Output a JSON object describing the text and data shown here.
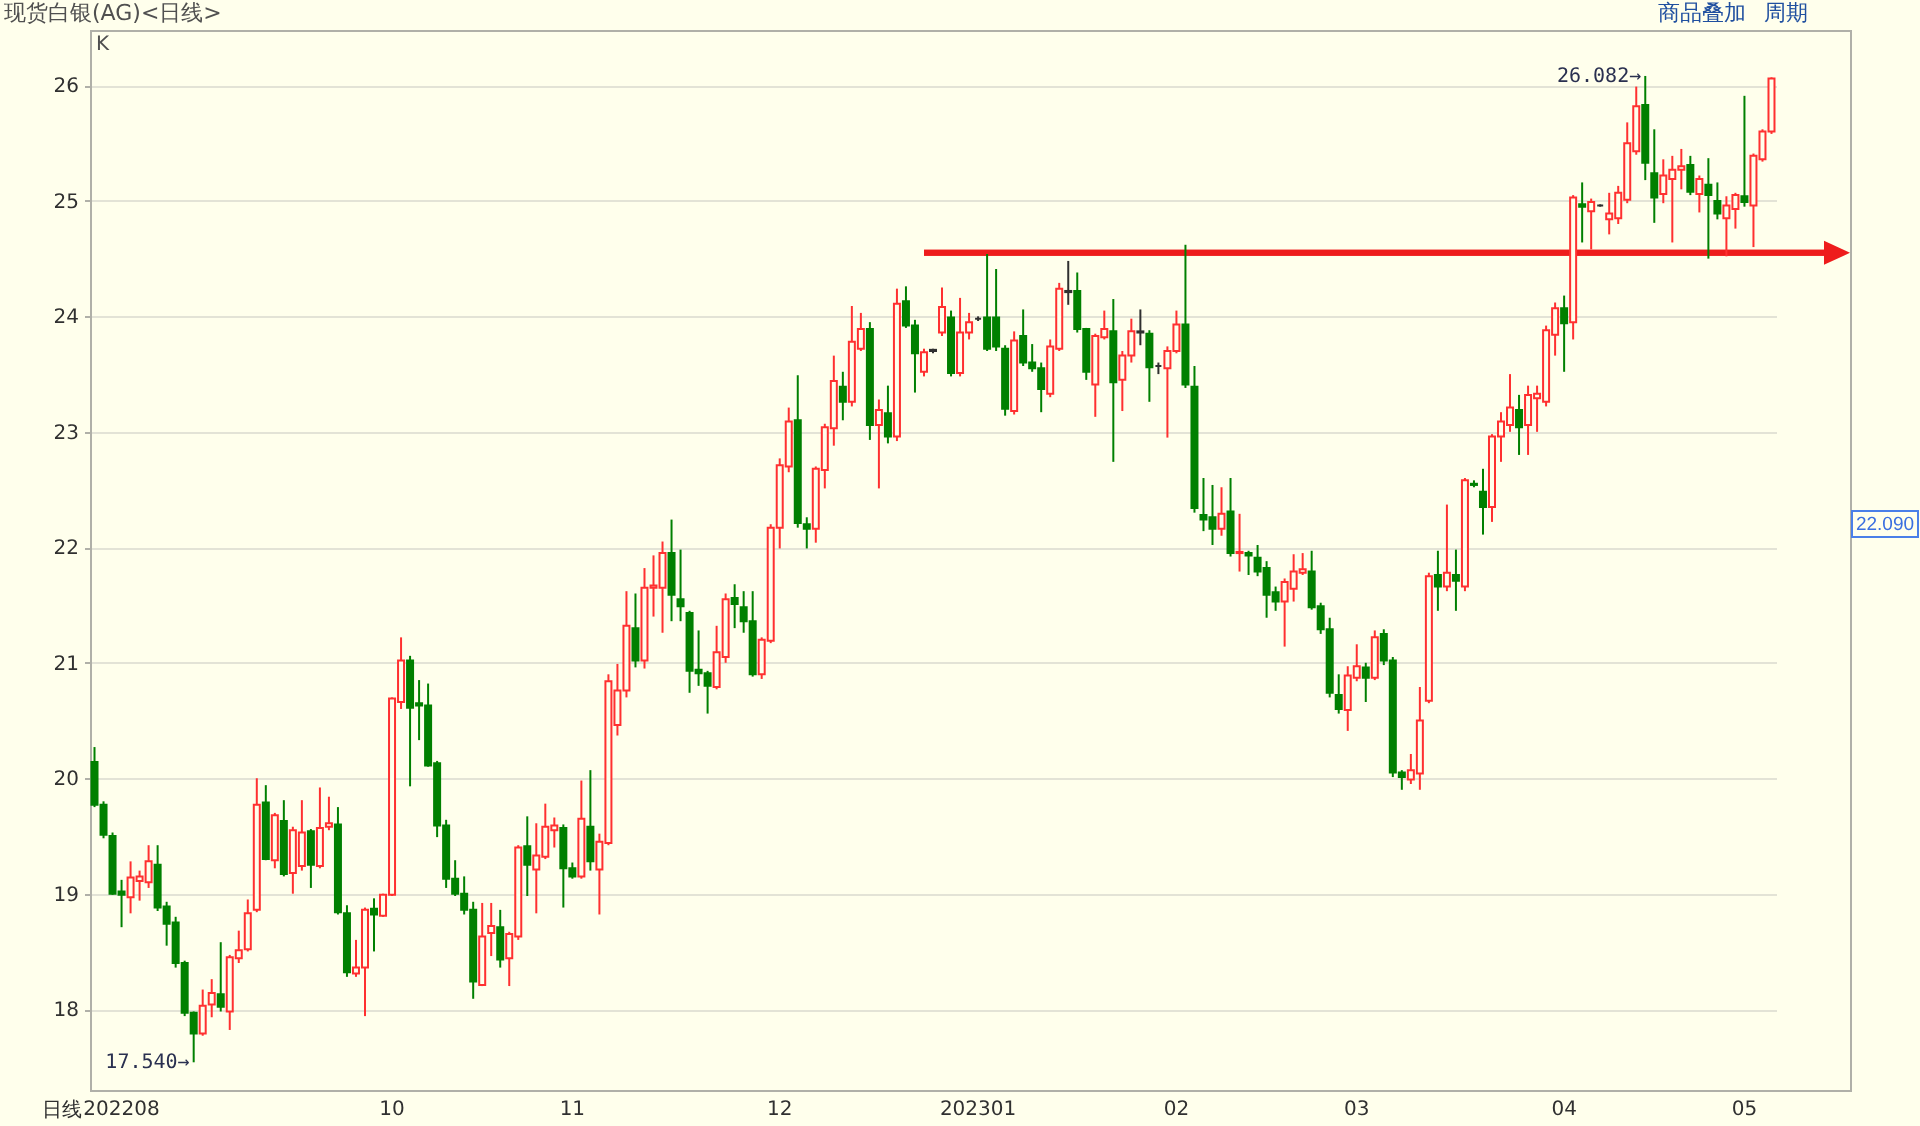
{
  "chart_data": {
    "type": "candlestick",
    "title": "现货白银(AG)<日线>",
    "categories": [
      null,
      null,
      null,
      "202208",
      null,
      null,
      null,
      null,
      null,
      null,
      null,
      null,
      null,
      null,
      null,
      null,
      null,
      null,
      null,
      null,
      null,
      null,
      null,
      null,
      null,
      null,
      null,
      null,
      null,
      null,
      null,
      null,
      null,
      "10",
      null,
      null,
      null,
      null,
      null,
      null,
      null,
      null,
      null,
      null,
      null,
      null,
      null,
      null,
      null,
      null,
      null,
      null,
      null,
      "11",
      null,
      null,
      null,
      null,
      null,
      null,
      null,
      null,
      null,
      null,
      null,
      null,
      null,
      null,
      null,
      null,
      null,
      null,
      null,
      null,
      null,
      null,
      "12",
      null,
      null,
      null,
      null,
      null,
      null,
      null,
      null,
      null,
      null,
      null,
      null,
      null,
      null,
      null,
      null,
      null,
      null,
      null,
      null,
      null,
      "202301",
      null,
      null,
      null,
      null,
      null,
      null,
      null,
      null,
      null,
      null,
      null,
      null,
      null,
      null,
      null,
      null,
      null,
      null,
      null,
      null,
      null,
      "02",
      null,
      null,
      null,
      null,
      null,
      null,
      null,
      null,
      null,
      null,
      null,
      null,
      null,
      null,
      null,
      null,
      null,
      null,
      null,
      "03",
      null,
      null,
      null,
      null,
      null,
      null,
      null,
      null,
      null,
      null,
      null,
      null,
      null,
      null,
      null,
      null,
      null,
      null,
      null,
      null,
      null,
      null,
      "04",
      null,
      null,
      null,
      null,
      null,
      null,
      null,
      null,
      null,
      null,
      null,
      null,
      null,
      null,
      null,
      null,
      null,
      null,
      null,
      "05",
      null,
      null,
      null
    ],
    "ohlc": [
      [
        20.14,
        20.27,
        19.75,
        19.77
      ],
      [
        19.77,
        19.8,
        19.48,
        19.51
      ],
      [
        19.5,
        19.53,
        18.99,
        19.0
      ],
      [
        19.02,
        19.12,
        18.71,
        18.99
      ],
      [
        18.97,
        19.28,
        18.83,
        19.14
      ],
      [
        19.11,
        19.2,
        18.94,
        19.15
      ],
      [
        19.1,
        19.42,
        19.05,
        19.28
      ],
      [
        19.25,
        19.42,
        18.85,
        18.88
      ],
      [
        18.89,
        18.93,
        18.55,
        18.74
      ],
      [
        18.75,
        18.8,
        18.36,
        18.4
      ],
      [
        18.4,
        18.42,
        17.94,
        17.97
      ],
      [
        17.97,
        17.98,
        17.54,
        17.79
      ],
      [
        17.79,
        18.17,
        17.77,
        18.03
      ],
      [
        18.04,
        18.26,
        17.93,
        18.14
      ],
      [
        18.13,
        18.58,
        17.98,
        18.02
      ],
      [
        17.98,
        18.47,
        17.82,
        18.45
      ],
      [
        18.44,
        18.68,
        18.4,
        18.51
      ],
      [
        18.52,
        18.95,
        18.5,
        18.83
      ],
      [
        18.86,
        20.0,
        18.84,
        19.77
      ],
      [
        19.79,
        19.94,
        19.29,
        19.3
      ],
      [
        19.29,
        19.7,
        19.22,
        19.68
      ],
      [
        19.63,
        19.81,
        19.15,
        19.17
      ],
      [
        19.18,
        19.58,
        19.0,
        19.55
      ],
      [
        19.24,
        19.81,
        19.2,
        19.53
      ],
      [
        19.54,
        19.56,
        19.05,
        19.25
      ],
      [
        19.24,
        19.92,
        19.22,
        19.57
      ],
      [
        19.58,
        19.84,
        19.55,
        19.61
      ],
      [
        19.6,
        19.75,
        18.82,
        18.84
      ],
      [
        18.83,
        18.9,
        18.28,
        18.32
      ],
      [
        18.31,
        18.6,
        18.28,
        18.36
      ],
      [
        18.36,
        18.88,
        17.94,
        18.86
      ],
      [
        18.87,
        18.96,
        18.5,
        18.82
      ],
      [
        18.81,
        19.0,
        18.8,
        18.99
      ],
      [
        18.99,
        20.7,
        18.98,
        20.69
      ],
      [
        20.66,
        21.22,
        20.6,
        21.02
      ],
      [
        21.02,
        21.06,
        19.93,
        20.61
      ],
      [
        20.65,
        20.85,
        20.33,
        20.63
      ],
      [
        20.63,
        20.82,
        20.1,
        20.11
      ],
      [
        20.13,
        20.15,
        19.49,
        19.59
      ],
      [
        19.59,
        19.64,
        19.05,
        19.13
      ],
      [
        19.13,
        19.29,
        18.98,
        19.0
      ],
      [
        19.0,
        19.15,
        18.82,
        18.86
      ],
      [
        18.86,
        18.93,
        18.09,
        18.24
      ],
      [
        18.21,
        18.92,
        18.2,
        18.63
      ],
      [
        18.66,
        18.92,
        18.46,
        18.72
      ],
      [
        18.71,
        18.86,
        18.36,
        18.43
      ],
      [
        18.44,
        18.67,
        18.2,
        18.65
      ],
      [
        18.63,
        19.42,
        18.6,
        19.4
      ],
      [
        19.41,
        19.67,
        18.98,
        19.25
      ],
      [
        19.21,
        19.61,
        18.83,
        19.33
      ],
      [
        19.32,
        19.78,
        19.3,
        19.58
      ],
      [
        19.55,
        19.66,
        19.4,
        19.59
      ],
      [
        19.57,
        19.6,
        18.88,
        19.22
      ],
      [
        19.22,
        19.27,
        19.13,
        19.15
      ],
      [
        19.15,
        19.98,
        19.13,
        19.65
      ],
      [
        19.58,
        20.07,
        19.2,
        19.28
      ],
      [
        19.21,
        19.52,
        18.82,
        19.45
      ],
      [
        19.44,
        20.9,
        19.42,
        20.84
      ],
      [
        20.46,
        20.99,
        20.37,
        20.76
      ],
      [
        20.76,
        21.62,
        20.7,
        21.32
      ],
      [
        21.3,
        21.6,
        20.96,
        21.02
      ],
      [
        21.02,
        21.82,
        20.95,
        21.65
      ],
      [
        21.65,
        21.93,
        21.4,
        21.67
      ],
      [
        21.65,
        22.05,
        21.26,
        21.95
      ],
      [
        21.95,
        22.24,
        21.36,
        21.59
      ],
      [
        21.55,
        21.98,
        21.36,
        21.49
      ],
      [
        21.43,
        21.45,
        20.74,
        20.93
      ],
      [
        20.94,
        21.28,
        20.8,
        20.91
      ],
      [
        20.91,
        20.93,
        20.56,
        20.8
      ],
      [
        20.79,
        21.32,
        20.77,
        21.09
      ],
      [
        21.05,
        21.6,
        21.0,
        21.55
      ],
      [
        21.56,
        21.68,
        21.3,
        21.51
      ],
      [
        21.48,
        21.62,
        21.26,
        21.36
      ],
      [
        21.36,
        21.62,
        20.88,
        20.9
      ],
      [
        20.9,
        21.22,
        20.86,
        21.2
      ],
      [
        21.19,
        22.2,
        21.17,
        22.17
      ],
      [
        22.17,
        22.77,
        21.99,
        22.71
      ],
      [
        22.7,
        23.21,
        22.65,
        23.09
      ],
      [
        23.1,
        23.49,
        22.17,
        22.21
      ],
      [
        22.2,
        22.26,
        21.99,
        22.16
      ],
      [
        22.16,
        22.7,
        22.04,
        22.68
      ],
      [
        22.67,
        23.07,
        22.51,
        23.04
      ],
      [
        23.03,
        23.66,
        22.88,
        23.44
      ],
      [
        23.39,
        23.52,
        23.1,
        23.26
      ],
      [
        23.26,
        24.09,
        23.22,
        23.78
      ],
      [
        23.72,
        24.03,
        23.7,
        23.89
      ],
      [
        23.89,
        23.95,
        22.93,
        23.06
      ],
      [
        23.06,
        23.28,
        22.51,
        23.19
      ],
      [
        23.16,
        23.4,
        22.9,
        22.96
      ],
      [
        22.96,
        24.24,
        22.92,
        24.11
      ],
      [
        24.13,
        24.26,
        23.9,
        23.92
      ],
      [
        23.92,
        23.97,
        23.34,
        23.68
      ],
      [
        23.52,
        23.72,
        23.48,
        23.69
      ],
      [
        23.71,
        23.72,
        23.68,
        23.7
      ],
      [
        23.86,
        24.25,
        23.83,
        24.08
      ],
      [
        23.99,
        24.05,
        23.48,
        23.51
      ],
      [
        23.51,
        24.16,
        23.48,
        23.86
      ],
      [
        23.86,
        24.03,
        23.8,
        23.95
      ],
      [
        23.98,
        24.0,
        23.96,
        23.98
      ],
      [
        23.99,
        24.54,
        23.7,
        23.72
      ],
      [
        23.99,
        24.41,
        23.7,
        23.74
      ],
      [
        23.72,
        23.75,
        23.14,
        23.2
      ],
      [
        23.18,
        23.87,
        23.15,
        23.79
      ],
      [
        23.83,
        24.06,
        23.57,
        23.6
      ],
      [
        23.6,
        23.76,
        23.52,
        23.55
      ],
      [
        23.55,
        23.6,
        23.17,
        23.37
      ],
      [
        23.33,
        23.8,
        23.3,
        23.74
      ],
      [
        23.72,
        24.29,
        23.7,
        24.24
      ],
      [
        24.22,
        24.48,
        24.1,
        24.21
      ],
      [
        24.22,
        24.38,
        23.86,
        23.89
      ],
      [
        23.89,
        23.9,
        23.45,
        23.52
      ],
      [
        23.41,
        23.85,
        23.13,
        23.83
      ],
      [
        23.82,
        24.05,
        23.8,
        23.89
      ],
      [
        23.87,
        24.15,
        22.74,
        23.43
      ],
      [
        23.45,
        23.7,
        23.18,
        23.66
      ],
      [
        23.66,
        23.98,
        23.6,
        23.87
      ],
      [
        23.87,
        24.06,
        23.75,
        23.86
      ],
      [
        23.85,
        23.88,
        23.26,
        23.56
      ],
      [
        23.57,
        23.6,
        23.5,
        23.57
      ],
      [
        23.55,
        23.74,
        22.95,
        23.7
      ],
      [
        23.7,
        24.05,
        23.68,
        23.93
      ],
      [
        23.93,
        24.62,
        23.38,
        23.41
      ],
      [
        23.39,
        23.57,
        22.3,
        22.34
      ],
      [
        22.28,
        22.6,
        22.14,
        22.24
      ],
      [
        22.26,
        22.54,
        22.02,
        22.16
      ],
      [
        22.16,
        22.52,
        22.1,
        22.29
      ],
      [
        22.31,
        22.6,
        21.92,
        21.95
      ],
      [
        21.95,
        22.29,
        21.79,
        21.96
      ],
      [
        21.95,
        21.97,
        21.76,
        21.93
      ],
      [
        21.91,
        22.02,
        21.75,
        21.79
      ],
      [
        21.82,
        21.88,
        21.39,
        21.59
      ],
      [
        21.61,
        21.66,
        21.45,
        21.53
      ],
      [
        21.53,
        21.73,
        21.14,
        21.7
      ],
      [
        21.64,
        21.94,
        21.53,
        21.79
      ],
      [
        21.78,
        21.95,
        21.76,
        21.81
      ],
      [
        21.79,
        21.97,
        21.46,
        21.48
      ],
      [
        21.49,
        21.52,
        21.25,
        21.29
      ],
      [
        21.29,
        21.39,
        20.7,
        20.74
      ],
      [
        20.72,
        20.9,
        20.56,
        20.6
      ],
      [
        20.59,
        20.97,
        20.41,
        20.89
      ],
      [
        20.87,
        21.16,
        20.84,
        20.97
      ],
      [
        20.96,
        21.0,
        20.66,
        20.87
      ],
      [
        20.87,
        21.28,
        20.85,
        21.22
      ],
      [
        21.25,
        21.29,
        20.98,
        21.02
      ],
      [
        21.02,
        21.05,
        20.01,
        20.05
      ],
      [
        20.05,
        20.07,
        19.9,
        20.01
      ],
      [
        19.99,
        20.21,
        19.95,
        20.07
      ],
      [
        20.04,
        20.79,
        19.9,
        20.5
      ],
      [
        20.67,
        21.78,
        20.65,
        21.75
      ],
      [
        21.76,
        21.97,
        21.45,
        21.66
      ],
      [
        21.66,
        22.37,
        21.62,
        21.78
      ],
      [
        21.76,
        21.98,
        21.45,
        21.71
      ],
      [
        21.66,
        22.6,
        21.62,
        22.58
      ],
      [
        22.55,
        22.58,
        22.52,
        22.54
      ],
      [
        22.48,
        22.68,
        22.11,
        22.35
      ],
      [
        22.35,
        22.98,
        22.22,
        22.96
      ],
      [
        22.96,
        23.17,
        22.74,
        23.09
      ],
      [
        23.06,
        23.5,
        23.0,
        23.21
      ],
      [
        23.19,
        23.32,
        22.8,
        23.04
      ],
      [
        23.06,
        23.4,
        22.8,
        23.32
      ],
      [
        23.29,
        23.4,
        23.0,
        23.33
      ],
      [
        23.26,
        23.92,
        23.22,
        23.88
      ],
      [
        23.84,
        24.12,
        23.66,
        24.07
      ],
      [
        24.07,
        24.18,
        23.52,
        23.94
      ],
      [
        23.95,
        25.05,
        23.8,
        25.03
      ],
      [
        24.97,
        25.16,
        24.64,
        24.95
      ],
      [
        24.91,
        25.02,
        24.58,
        24.99
      ],
      [
        24.96,
        24.97,
        24.95,
        24.96
      ],
      [
        24.84,
        25.07,
        24.71,
        24.89
      ],
      [
        24.85,
        25.13,
        24.8,
        25.07
      ],
      [
        25.01,
        25.68,
        24.98,
        25.5
      ],
      [
        25.43,
        25.99,
        25.4,
        25.82
      ],
      [
        25.83,
        26.082,
        25.18,
        25.33
      ],
      [
        25.24,
        25.62,
        24.81,
        25.03
      ],
      [
        25.06,
        25.36,
        24.98,
        25.22
      ],
      [
        25.19,
        25.39,
        24.64,
        25.27
      ],
      [
        25.27,
        25.45,
        25.1,
        25.3
      ],
      [
        25.31,
        25.39,
        25.05,
        25.08
      ],
      [
        25.06,
        25.22,
        24.9,
        25.19
      ],
      [
        25.14,
        25.37,
        24.5,
        25.05
      ],
      [
        25.0,
        25.16,
        24.84,
        24.89
      ],
      [
        24.85,
        25.04,
        24.52,
        24.96
      ],
      [
        24.93,
        25.07,
        24.76,
        25.05
      ],
      [
        25.04,
        25.91,
        24.95,
        24.99
      ],
      [
        24.96,
        25.41,
        24.6,
        25.39
      ],
      [
        25.36,
        25.62,
        25.34,
        25.6
      ],
      [
        25.6,
        26.07,
        25.58,
        26.06
      ]
    ],
    "colors": [
      "#008000",
      "#008000",
      "#008000",
      "#008000",
      "#ff3030",
      "#ff3030",
      "#ff3030",
      "#008000",
      "#008000",
      "#008000",
      "#008000",
      "#008000",
      "#ff3030",
      "#ff3030",
      "#008000",
      "#ff3030",
      "#ff3030",
      "#ff3030",
      "#ff3030",
      "#008000",
      "#ff3030",
      "#008000",
      "#ff3030",
      "#ff3030",
      "#008000",
      "#ff3030",
      "#ff3030",
      "#008000",
      "#008000",
      "#ff3030",
      "#ff3030",
      "#008000",
      "#ff3030",
      "#ff3030",
      "#ff3030",
      "#008000",
      "#008000",
      "#008000",
      "#008000",
      "#008000",
      "#008000",
      "#008000",
      "#008000",
      "#ff3030",
      "#ff3030",
      "#008000",
      "#ff3030",
      "#ff3030",
      "#008000",
      "#ff3030",
      "#ff3030",
      "#ff3030",
      "#008000",
      "#008000",
      "#ff3030",
      "#008000",
      "#ff3030",
      "#ff3030",
      "#ff3030",
      "#ff3030",
      "#008000",
      "#ff3030",
      "#ff3030",
      "#ff3030",
      "#008000",
      "#008000",
      "#008000",
      "#008000",
      "#008000",
      "#ff3030",
      "#ff3030",
      "#008000",
      "#008000",
      "#008000",
      "#ff3030",
      "#ff3030",
      "#ff3030",
      "#ff3030",
      "#008000",
      "#008000",
      "#ff3030",
      "#ff3030",
      "#ff3030",
      "#008000",
      "#ff3030",
      "#ff3030",
      "#008000",
      "#ff3030",
      "#008000",
      "#ff3030",
      "#008000",
      "#008000",
      "#ff3030",
      "#303030",
      "#ff3030",
      "#008000",
      "#ff3030",
      "#ff3030",
      "#303030",
      "#008000",
      "#008000",
      "#008000",
      "#ff3030",
      "#008000",
      "#008000",
      "#008000",
      "#ff3030",
      "#ff3030",
      "#303030",
      "#008000",
      "#008000",
      "#ff3030",
      "#ff3030",
      "#008000",
      "#ff3030",
      "#ff3030",
      "#303030",
      "#008000",
      "#303030",
      "#ff3030",
      "#ff3030",
      "#008000",
      "#008000",
      "#008000",
      "#008000",
      "#ff3030",
      "#008000",
      "#ff3030",
      "#008000",
      "#008000",
      "#008000",
      "#008000",
      "#ff3030",
      "#ff3030",
      "#ff3030",
      "#008000",
      "#008000",
      "#008000",
      "#008000",
      "#ff3030",
      "#ff3030",
      "#008000",
      "#ff3030",
      "#008000",
      "#008000",
      "#008000",
      "#ff3030",
      "#ff3030",
      "#ff3030",
      "#008000",
      "#ff3030",
      "#008000",
      "#ff3030",
      "#008000",
      "#008000",
      "#ff3030",
      "#ff3030",
      "#ff3030",
      "#008000",
      "#ff3030",
      "#ff3030",
      "#ff3030",
      "#ff3030",
      "#008000",
      "#ff3030",
      "#008000",
      "#ff3030",
      "#303030",
      "#ff3030",
      "#ff3030",
      "#ff3030",
      "#ff3030",
      "#008000",
      "#008000",
      "#ff3030",
      "#ff3030",
      "#ff3030",
      "#008000",
      "#ff3030",
      "#008000",
      "#008000",
      "#ff3030",
      "#ff3030",
      "#008000",
      "#ff3030",
      "#ff3030",
      "#ff3030"
    ],
    "ylim": [
      17.3,
      26.48
    ],
    "yticks": [
      18,
      19,
      20,
      21,
      22,
      23,
      24,
      25,
      26
    ],
    "grid": "y",
    "ref_lines": [
      {
        "axis": "y",
        "value": 24.55,
        "color": "#ee1c1c"
      }
    ],
    "annotations": [
      "K",
      "日线",
      "商品叠加",
      "周期",
      "17.540→",
      "26.082→",
      "22.090"
    ]
  }
}
